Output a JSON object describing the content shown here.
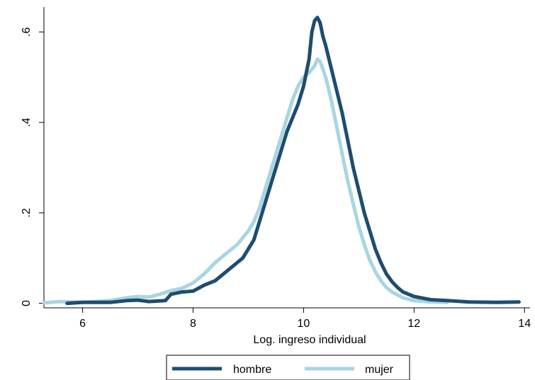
{
  "chart_data": {
    "type": "line",
    "title": "",
    "xlabel": "Log. ingreso individual",
    "ylabel": "",
    "xlim": [
      5.3,
      14.1
    ],
    "ylim": [
      -0.01,
      0.655
    ],
    "xticks": [
      6,
      8,
      10,
      12,
      14
    ],
    "yticks": [
      0,
      0.2,
      0.4,
      0.6
    ],
    "xtick_labels": [
      "6",
      "8",
      "10",
      "12",
      "14"
    ],
    "ytick_labels": [
      "0",
      ".2",
      ".4",
      ".6"
    ],
    "grid": false,
    "legend_position": "bottom",
    "series": [
      {
        "name": "hombre",
        "color": "#1e4d6f",
        "x": [
          5.72,
          6.0,
          6.5,
          6.8,
          7.0,
          7.2,
          7.5,
          7.6,
          7.8,
          8.0,
          8.2,
          8.4,
          8.6,
          8.8,
          8.9,
          9.0,
          9.1,
          9.2,
          9.3,
          9.4,
          9.5,
          9.6,
          9.7,
          9.8,
          9.9,
          10.0,
          10.1,
          10.15,
          10.2,
          10.25,
          10.3,
          10.35,
          10.4,
          10.5,
          10.6,
          10.7,
          10.8,
          10.9,
          11.0,
          11.1,
          11.2,
          11.3,
          11.4,
          11.5,
          11.6,
          11.7,
          11.8,
          12.0,
          12.3,
          12.6,
          13.0,
          13.5,
          13.9
        ],
        "y": [
          0.0,
          0.002,
          0.002,
          0.006,
          0.007,
          0.004,
          0.006,
          0.02,
          0.025,
          0.027,
          0.04,
          0.05,
          0.07,
          0.09,
          0.1,
          0.12,
          0.14,
          0.18,
          0.22,
          0.26,
          0.3,
          0.34,
          0.38,
          0.41,
          0.44,
          0.48,
          0.54,
          0.6,
          0.625,
          0.632,
          0.62,
          0.59,
          0.57,
          0.52,
          0.47,
          0.42,
          0.36,
          0.3,
          0.25,
          0.2,
          0.16,
          0.12,
          0.09,
          0.065,
          0.048,
          0.035,
          0.025,
          0.015,
          0.008,
          0.006,
          0.003,
          0.002,
          0.003
        ]
      },
      {
        "name": "mujer",
        "color": "#a8d5e2",
        "x": [
          5.3,
          5.6,
          6.0,
          6.5,
          6.8,
          7.0,
          7.2,
          7.4,
          7.6,
          7.8,
          8.0,
          8.2,
          8.4,
          8.6,
          8.8,
          9.0,
          9.1,
          9.2,
          9.3,
          9.4,
          9.5,
          9.6,
          9.7,
          9.8,
          9.9,
          10.0,
          10.1,
          10.2,
          10.25,
          10.3,
          10.4,
          10.5,
          10.6,
          10.7,
          10.8,
          10.9,
          11.0,
          11.1,
          11.2,
          11.3,
          11.4,
          11.5,
          11.6,
          11.8,
          12.0,
          12.3,
          12.6
        ],
        "y": [
          0.001,
          0.004,
          0.002,
          0.006,
          0.012,
          0.015,
          0.014,
          0.02,
          0.028,
          0.033,
          0.045,
          0.065,
          0.09,
          0.11,
          0.13,
          0.16,
          0.18,
          0.21,
          0.25,
          0.29,
          0.33,
          0.37,
          0.41,
          0.45,
          0.48,
          0.5,
          0.51,
          0.525,
          0.54,
          0.535,
          0.5,
          0.45,
          0.39,
          0.33,
          0.27,
          0.22,
          0.17,
          0.13,
          0.095,
          0.07,
          0.05,
          0.035,
          0.025,
          0.012,
          0.006,
          0.003,
          0.002
        ]
      }
    ]
  }
}
